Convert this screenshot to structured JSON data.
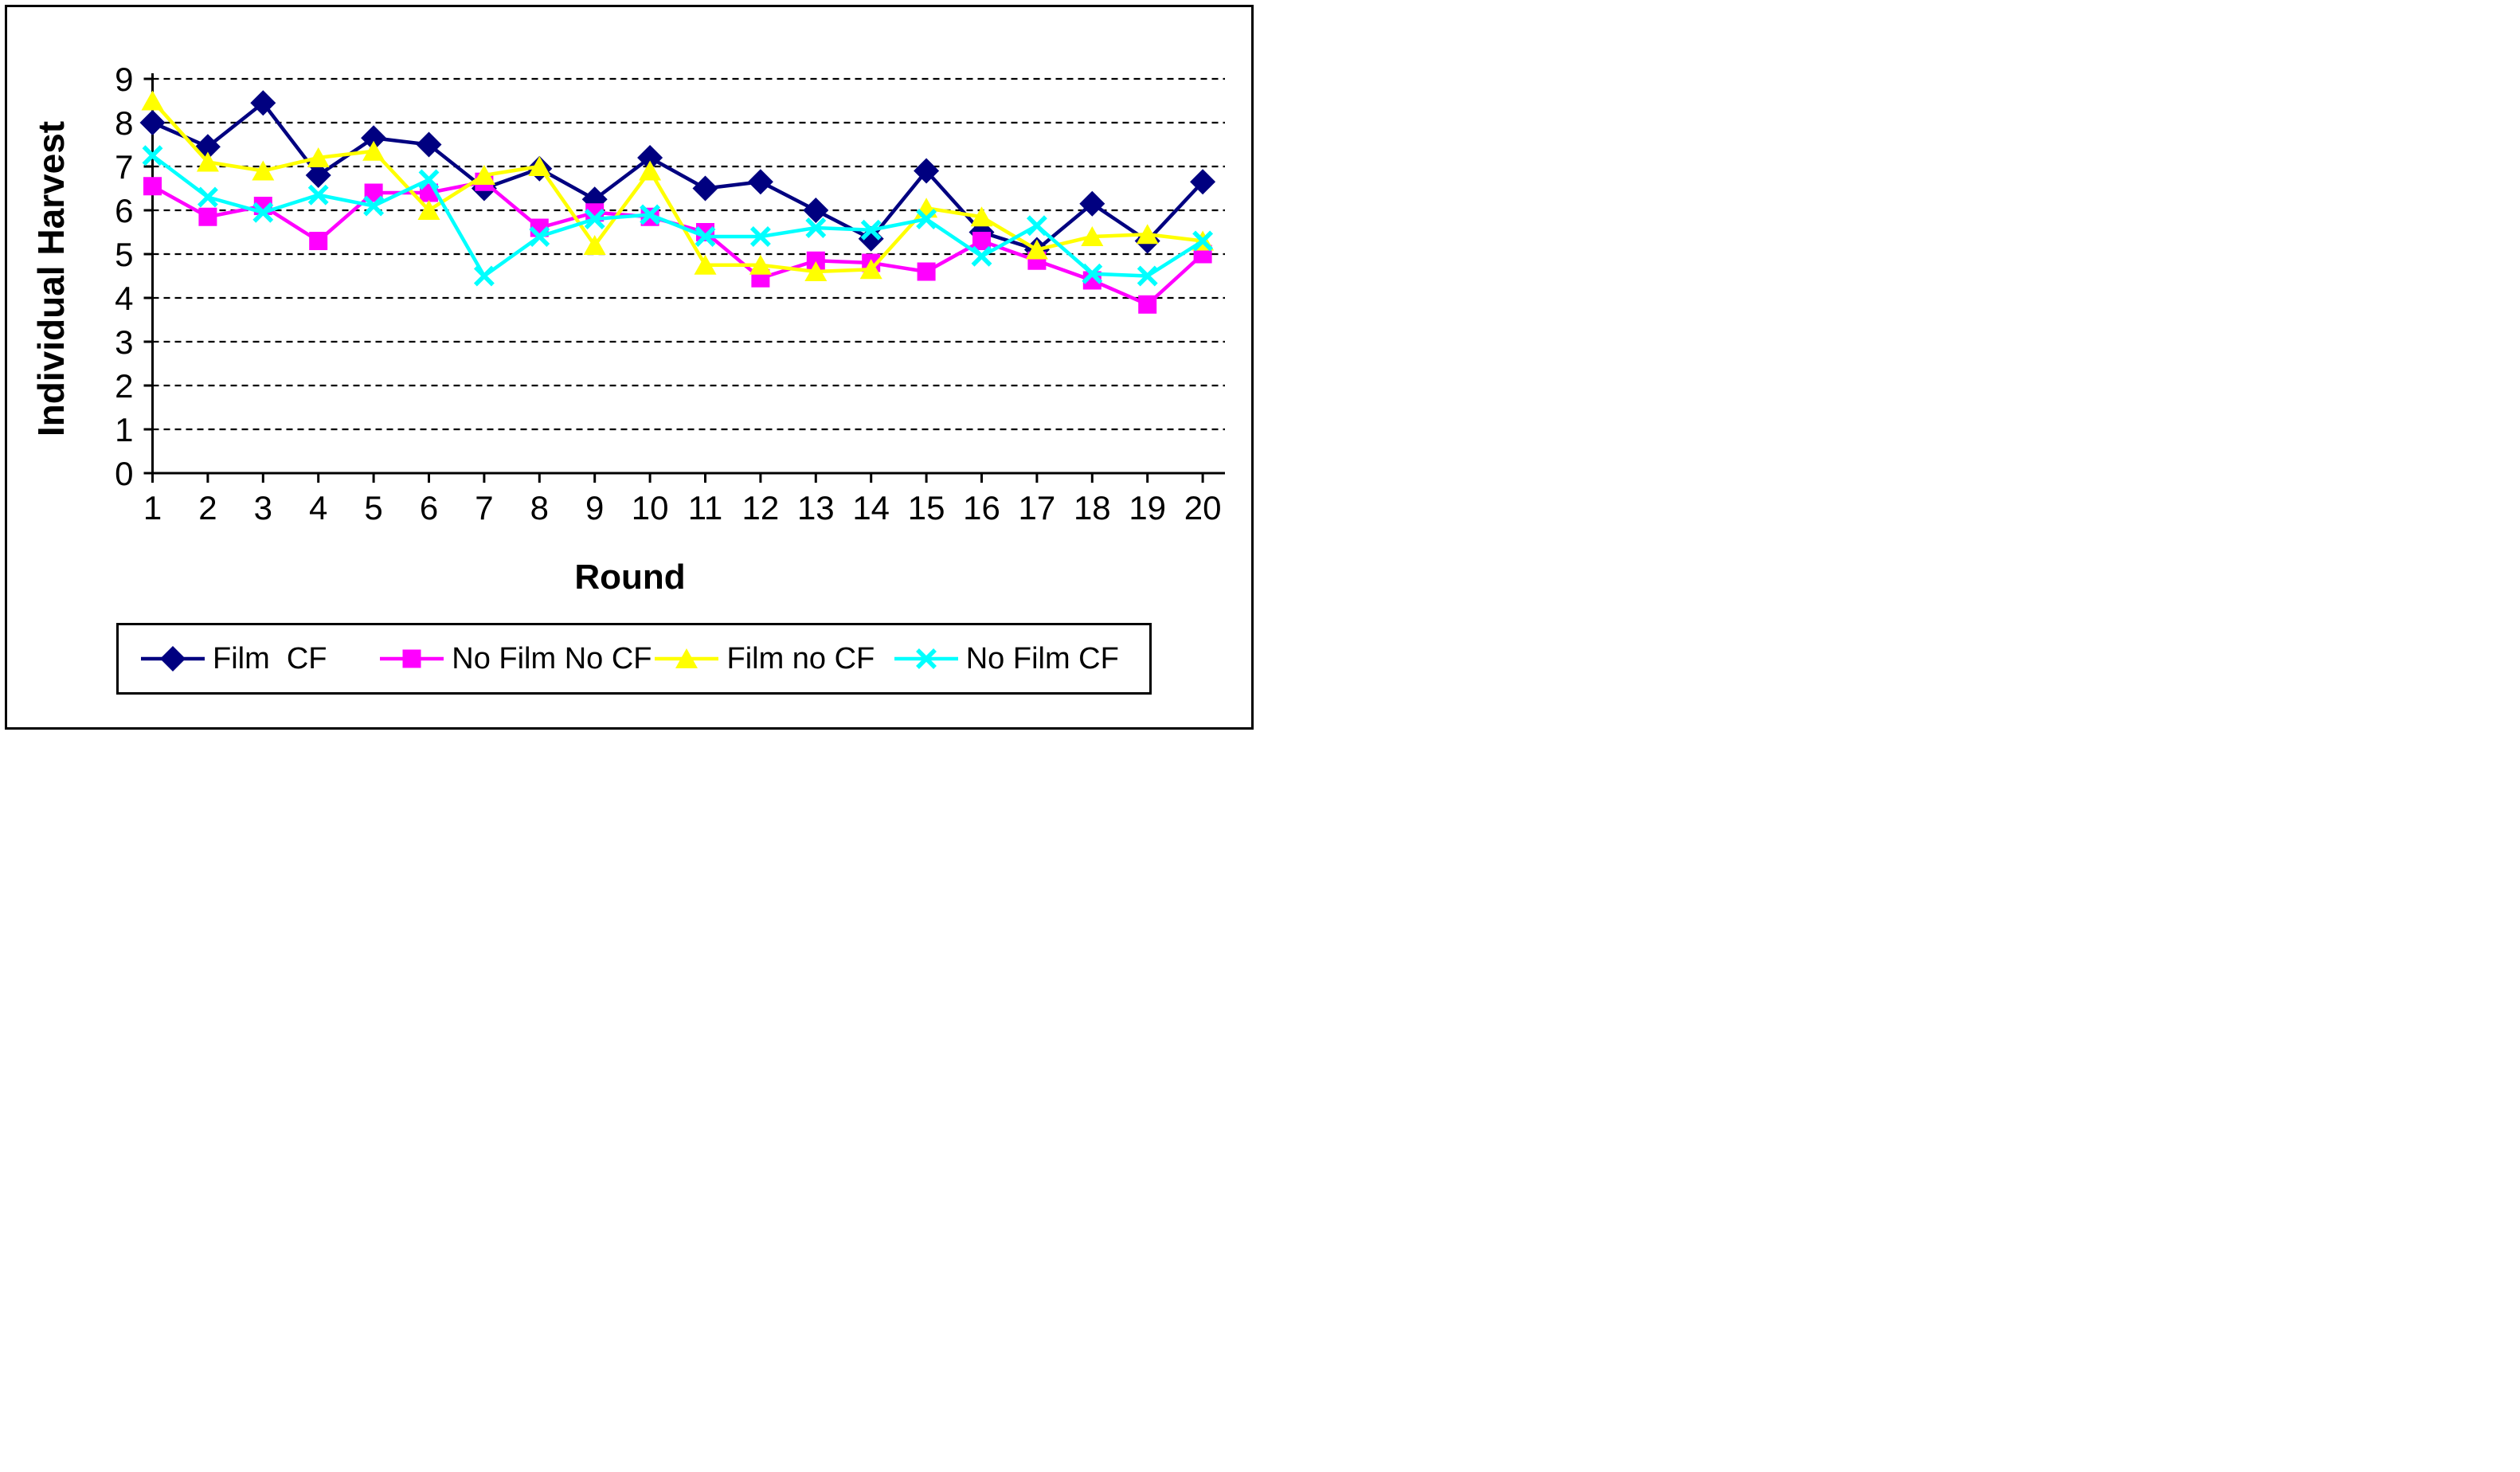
{
  "chart_data": {
    "type": "line",
    "xlabel": "Round",
    "ylabel": "Individual Harvest",
    "ylim": [
      0,
      9
    ],
    "x_ticks": [
      "1",
      "2",
      "3",
      "4",
      "5",
      "6",
      "7",
      "8",
      "9",
      "10",
      "11",
      "12",
      "13",
      "14",
      "15",
      "16",
      "17",
      "18",
      "19",
      "20"
    ],
    "y_ticks": [
      "0",
      "1",
      "2",
      "3",
      "4",
      "5",
      "6",
      "7",
      "8",
      "9"
    ],
    "grid": "horizontal-dashed",
    "legend_position": "bottom",
    "x": [
      1,
      2,
      3,
      4,
      5,
      6,
      7,
      8,
      9,
      10,
      11,
      12,
      13,
      14,
      15,
      16,
      17,
      18,
      19,
      20
    ],
    "series": [
      {
        "name": "Film  CF",
        "marker": "diamond",
        "color": "#000080",
        "values": [
          8.0,
          7.45,
          8.45,
          6.8,
          7.65,
          7.5,
          6.5,
          6.95,
          6.25,
          7.2,
          6.5,
          6.65,
          6.0,
          5.35,
          6.9,
          5.5,
          5.1,
          6.15,
          5.3,
          6.65
        ]
      },
      {
        "name": "No Film No CF",
        "marker": "square",
        "color": "#FF00FF",
        "values": [
          6.55,
          5.85,
          6.1,
          5.3,
          6.4,
          6.4,
          6.65,
          5.6,
          5.95,
          5.85,
          5.5,
          4.45,
          4.85,
          4.8,
          4.6,
          5.3,
          4.85,
          4.4,
          3.85,
          5.0
        ]
      },
      {
        "name": "Film no CF",
        "marker": "triangle",
        "color": "#FFFF00",
        "values": [
          8.5,
          7.1,
          6.9,
          7.2,
          7.35,
          6.0,
          6.8,
          7.0,
          5.2,
          6.9,
          4.75,
          4.75,
          4.6,
          4.65,
          6.05,
          5.85,
          5.1,
          5.4,
          5.45,
          5.3
        ]
      },
      {
        "name": "No Film CF",
        "marker": "x",
        "color": "#00FFFF",
        "values": [
          7.25,
          6.3,
          5.95,
          6.35,
          6.1,
          6.7,
          4.5,
          5.4,
          5.8,
          5.9,
          5.4,
          5.4,
          5.6,
          5.55,
          5.8,
          4.95,
          5.65,
          4.55,
          4.5,
          5.3
        ]
      }
    ],
    "axis_color": "#000000",
    "background": "#FFFFFF"
  }
}
